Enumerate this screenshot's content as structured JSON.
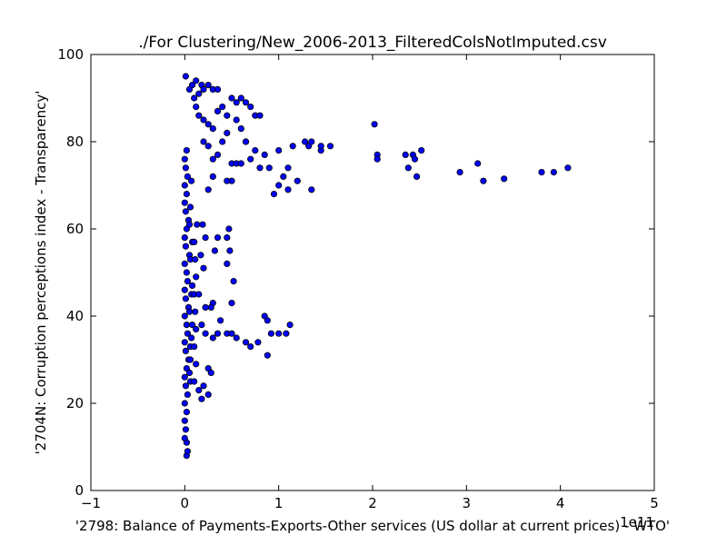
{
  "chart_data": {
    "type": "scatter",
    "title": "./For Clustering/New_2006-2013_FilteredColsNotImputed.csv",
    "xlabel": "'2798: Balance of Payments-Exports-Other services (US dollar at current prices) - WTO'",
    "ylabel": "'2704N: Corruption perceptions index - Transparency'",
    "x_offset_label": "1e11",
    "xlim": [
      -1,
      5
    ],
    "ylim": [
      0,
      100
    ],
    "x_ticks": [
      "−1",
      "0",
      "1",
      "2",
      "3",
      "4",
      "5"
    ],
    "y_ticks": [
      "0",
      "20",
      "40",
      "60",
      "80",
      "100"
    ],
    "grid": false,
    "marker_color": "#0000ff",
    "marker_edge_color": "#000000",
    "x_units_note": "x values in units of 1e11 US dollars",
    "series": [
      {
        "points": [
          [
            0.02,
            8
          ],
          [
            0.02,
            11
          ],
          [
            0.0,
            12
          ],
          [
            0.01,
            14
          ],
          [
            0.0,
            16
          ],
          [
            0.02,
            18
          ],
          [
            0.0,
            20
          ],
          [
            0.03,
            22
          ],
          [
            0.01,
            24
          ],
          [
            0.0,
            26
          ],
          [
            0.02,
            28
          ],
          [
            0.04,
            30
          ],
          [
            0.01,
            32
          ],
          [
            0.0,
            34
          ],
          [
            0.03,
            36
          ],
          [
            0.02,
            38
          ],
          [
            0.0,
            40
          ],
          [
            0.04,
            42
          ],
          [
            0.01,
            44
          ],
          [
            0.0,
            46
          ],
          [
            0.03,
            48
          ],
          [
            0.02,
            50
          ],
          [
            0.0,
            52
          ],
          [
            0.05,
            54
          ],
          [
            0.01,
            56
          ],
          [
            0.0,
            58
          ],
          [
            0.02,
            60
          ],
          [
            0.04,
            62
          ],
          [
            0.01,
            64
          ],
          [
            0.0,
            66
          ],
          [
            0.02,
            68
          ],
          [
            0.0,
            70
          ],
          [
            0.03,
            72
          ],
          [
            0.01,
            74
          ],
          [
            0.0,
            76
          ],
          [
            0.02,
            78
          ],
          [
            0.05,
            27
          ],
          [
            0.06,
            33
          ],
          [
            0.05,
            41
          ],
          [
            0.07,
            45
          ],
          [
            0.06,
            53
          ],
          [
            0.08,
            57
          ],
          [
            0.05,
            61
          ],
          [
            0.07,
            35
          ],
          [
            0.06,
            25
          ],
          [
            0.08,
            47
          ],
          [
            0.06,
            65
          ],
          [
            0.07,
            71
          ],
          [
            0.08,
            38
          ],
          [
            0.06,
            30
          ],
          [
            0.1,
            25
          ],
          [
            0.12,
            29
          ],
          [
            0.1,
            33
          ],
          [
            0.12,
            37
          ],
          [
            0.11,
            41
          ],
          [
            0.1,
            45
          ],
          [
            0.12,
            49
          ],
          [
            0.11,
            53
          ],
          [
            0.1,
            57
          ],
          [
            0.13,
            61
          ],
          [
            0.15,
            23
          ],
          [
            0.18,
            21
          ],
          [
            0.2,
            24
          ],
          [
            0.22,
            36
          ],
          [
            0.18,
            38
          ],
          [
            0.15,
            45
          ],
          [
            0.2,
            51
          ],
          [
            0.17,
            54
          ],
          [
            0.22,
            58
          ],
          [
            0.19,
            61
          ],
          [
            0.25,
            28
          ],
          [
            0.28,
            27
          ],
          [
            0.3,
            35
          ],
          [
            0.35,
            36
          ],
          [
            0.3,
            43
          ],
          [
            0.32,
            55
          ],
          [
            0.35,
            58
          ],
          [
            0.38,
            39
          ],
          [
            0.45,
            36
          ],
          [
            0.45,
            52
          ],
          [
            0.48,
            55
          ],
          [
            0.47,
            60
          ],
          [
            0.5,
            43
          ],
          [
            0.52,
            48
          ],
          [
            0.5,
            36
          ],
          [
            0.55,
            35
          ],
          [
            0.45,
            58
          ],
          [
            0.28,
            42
          ],
          [
            0.22,
            42
          ],
          [
            0.25,
            22
          ],
          [
            0.65,
            34
          ],
          [
            0.7,
            33
          ],
          [
            0.78,
            34
          ],
          [
            0.85,
            40
          ],
          [
            0.88,
            39
          ],
          [
            0.92,
            36
          ],
          [
            0.88,
            31
          ],
          [
            1.0,
            36
          ],
          [
            1.08,
            36
          ],
          [
            1.12,
            38
          ],
          [
            0.05,
            92
          ],
          [
            0.08,
            93
          ],
          [
            0.12,
            94
          ],
          [
            0.15,
            91
          ],
          [
            0.18,
            93
          ],
          [
            0.2,
            92
          ],
          [
            0.25,
            93
          ],
          [
            0.3,
            92
          ],
          [
            0.35,
            92
          ],
          [
            0.1,
            90
          ],
          [
            0.12,
            88
          ],
          [
            0.15,
            86
          ],
          [
            0.2,
            85
          ],
          [
            0.25,
            84
          ],
          [
            0.3,
            83
          ],
          [
            0.35,
            87
          ],
          [
            0.4,
            88
          ],
          [
            0.45,
            86
          ],
          [
            0.5,
            90
          ],
          [
            0.55,
            89
          ],
          [
            0.6,
            90
          ],
          [
            0.65,
            89
          ],
          [
            0.7,
            88
          ],
          [
            0.75,
            86
          ],
          [
            0.8,
            86
          ],
          [
            0.55,
            85
          ],
          [
            0.6,
            83
          ],
          [
            0.65,
            80
          ],
          [
            0.7,
            76
          ],
          [
            0.75,
            78
          ],
          [
            0.2,
            80
          ],
          [
            0.25,
            79
          ],
          [
            0.3,
            76
          ],
          [
            0.35,
            77
          ],
          [
            0.4,
            80
          ],
          [
            0.45,
            82
          ],
          [
            0.5,
            75
          ],
          [
            0.55,
            75
          ],
          [
            0.6,
            75
          ],
          [
            0.65,
            80
          ],
          [
            0.3,
            72
          ],
          [
            0.25,
            69
          ],
          [
            0.5,
            71
          ],
          [
            0.45,
            71
          ],
          [
            0.8,
            74
          ],
          [
            0.85,
            77
          ],
          [
            0.9,
            74
          ],
          [
            0.95,
            68
          ],
          [
            1.0,
            70
          ],
          [
            1.05,
            72
          ],
          [
            1.0,
            78
          ],
          [
            1.1,
            69
          ],
          [
            1.1,
            74
          ],
          [
            1.15,
            79
          ],
          [
            1.2,
            71
          ],
          [
            1.28,
            80
          ],
          [
            1.32,
            79
          ],
          [
            1.35,
            80
          ],
          [
            1.35,
            69
          ],
          [
            1.45,
            78
          ],
          [
            1.45,
            79
          ],
          [
            1.55,
            79
          ],
          [
            2.02,
            84
          ],
          [
            2.05,
            77
          ],
          [
            2.05,
            76
          ],
          [
            2.35,
            77
          ],
          [
            2.38,
            74
          ],
          [
            2.43,
            77
          ],
          [
            2.45,
            76
          ],
          [
            2.47,
            72
          ],
          [
            2.52,
            78
          ],
          [
            2.93,
            73
          ],
          [
            3.12,
            75
          ],
          [
            3.18,
            71
          ],
          [
            3.4,
            71.5
          ],
          [
            3.8,
            73
          ],
          [
            3.93,
            73
          ],
          [
            4.08,
            74
          ],
          [
            0.03,
            9
          ],
          [
            0.01,
            95
          ]
        ]
      }
    ]
  }
}
